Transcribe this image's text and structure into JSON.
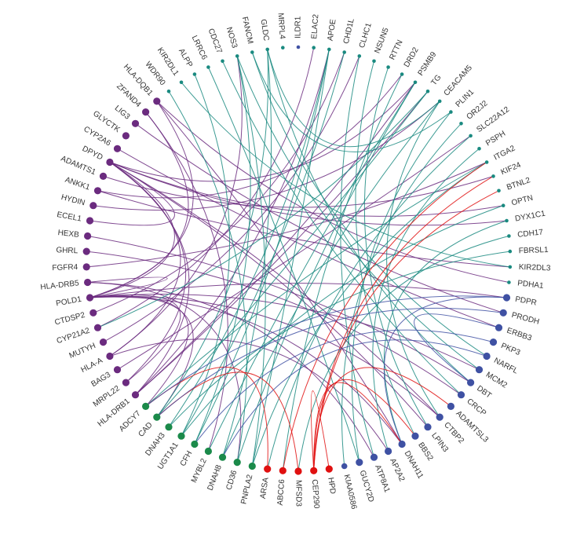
{
  "diagram": {
    "type": "circular-network",
    "group_colors": {
      "teal": "#1a8a80",
      "purple": "#6b2b7f",
      "blue": "#3f51a3",
      "green": "#1b8a4a",
      "red": "#e01010"
    },
    "nodes": [
      {
        "name": "ILDR1",
        "group": "blue",
        "size": 1
      },
      {
        "name": "ELAC2",
        "group": "teal",
        "size": 1
      },
      {
        "name": "APOE",
        "group": "teal",
        "size": 1
      },
      {
        "name": "CHD1L",
        "group": "teal",
        "size": 1
      },
      {
        "name": "CLHC1",
        "group": "teal",
        "size": 1
      },
      {
        "name": "NSUN5",
        "group": "teal",
        "size": 1
      },
      {
        "name": "RTTN",
        "group": "teal",
        "size": 1
      },
      {
        "name": "DRD2",
        "group": "teal",
        "size": 1
      },
      {
        "name": "PSMB9",
        "group": "teal",
        "size": 1
      },
      {
        "name": "TG",
        "group": "teal",
        "size": 1
      },
      {
        "name": "CEACAM5",
        "group": "teal",
        "size": 1
      },
      {
        "name": "PLIN1",
        "group": "teal",
        "size": 1
      },
      {
        "name": "OR2J2",
        "group": "teal",
        "size": 1
      },
      {
        "name": "SLC22A12",
        "group": "teal",
        "size": 1
      },
      {
        "name": "PSPH",
        "group": "teal",
        "size": 1
      },
      {
        "name": "ITGA2",
        "group": "teal",
        "size": 1
      },
      {
        "name": "KIF24",
        "group": "teal",
        "size": 1
      },
      {
        "name": "BTNL2",
        "group": "teal",
        "size": 1
      },
      {
        "name": "OPTN",
        "group": "teal",
        "size": 1
      },
      {
        "name": "DYX1C1",
        "group": "teal",
        "size": 1
      },
      {
        "name": "CDH17",
        "group": "teal",
        "size": 1
      },
      {
        "name": "FBRSL1",
        "group": "teal",
        "size": 1
      },
      {
        "name": "KIR2DL3",
        "group": "teal",
        "size": 1
      },
      {
        "name": "PDHA1",
        "group": "teal",
        "size": 1
      },
      {
        "name": "PDPR",
        "group": "blue",
        "size": 3
      },
      {
        "name": "PRODH",
        "group": "blue",
        "size": 3
      },
      {
        "name": "ERBB3",
        "group": "blue",
        "size": 3
      },
      {
        "name": "PKP3",
        "group": "blue",
        "size": 3
      },
      {
        "name": "NARFL",
        "group": "blue",
        "size": 3
      },
      {
        "name": "MCM2",
        "group": "blue",
        "size": 3
      },
      {
        "name": "DBT",
        "group": "blue",
        "size": 3
      },
      {
        "name": "CRCP",
        "group": "blue",
        "size": 3
      },
      {
        "name": "ADAMTSL3",
        "group": "blue",
        "size": 3
      },
      {
        "name": "CTBP2",
        "group": "blue",
        "size": 3
      },
      {
        "name": "LPIN3",
        "group": "blue",
        "size": 3
      },
      {
        "name": "BBS2",
        "group": "blue",
        "size": 3
      },
      {
        "name": "DNAH11",
        "group": "blue",
        "size": 3
      },
      {
        "name": "AP2A2",
        "group": "blue",
        "size": 3
      },
      {
        "name": "ATP8A1",
        "group": "blue",
        "size": 3
      },
      {
        "name": "GUCY2D",
        "group": "blue",
        "size": 3
      },
      {
        "name": "KIAA0586",
        "group": "blue",
        "size": 2
      },
      {
        "name": "HPD",
        "group": "red",
        "size": 3
      },
      {
        "name": "CEP290",
        "group": "red",
        "size": 3
      },
      {
        "name": "MFSD3",
        "group": "red",
        "size": 3
      },
      {
        "name": "ABCC6",
        "group": "red",
        "size": 3
      },
      {
        "name": "ARSA",
        "group": "red",
        "size": 3
      },
      {
        "name": "PNPLA2",
        "group": "green",
        "size": 3
      },
      {
        "name": "CD36",
        "group": "green",
        "size": 3
      },
      {
        "name": "DNAH8",
        "group": "green",
        "size": 3
      },
      {
        "name": "MYBL2",
        "group": "green",
        "size": 3
      },
      {
        "name": "CFH",
        "group": "green",
        "size": 3
      },
      {
        "name": "UGT1A1",
        "group": "green",
        "size": 3
      },
      {
        "name": "DNAH3",
        "group": "green",
        "size": 3
      },
      {
        "name": "CAD",
        "group": "green",
        "size": 3
      },
      {
        "name": "ADCY7",
        "group": "green",
        "size": 3
      },
      {
        "name": "HLA-DRB1",
        "group": "purple",
        "size": 3
      },
      {
        "name": "MRPL22",
        "group": "purple",
        "size": 3
      },
      {
        "name": "BAG3",
        "group": "purple",
        "size": 3
      },
      {
        "name": "HLA-A",
        "group": "purple",
        "size": 3
      },
      {
        "name": "MUTYH",
        "group": "purple",
        "size": 3
      },
      {
        "name": "CYP21A2",
        "group": "purple",
        "size": 3
      },
      {
        "name": "CTDSP2",
        "group": "purple",
        "size": 3
      },
      {
        "name": "POLD1",
        "group": "purple",
        "size": 3
      },
      {
        "name": "HLA-DRB5",
        "group": "purple",
        "size": 3
      },
      {
        "name": "FGFR4",
        "group": "purple",
        "size": 3
      },
      {
        "name": "GHRL",
        "group": "purple",
        "size": 3
      },
      {
        "name": "HEXB",
        "group": "purple",
        "size": 3
      },
      {
        "name": "ECEL1",
        "group": "purple",
        "size": 3
      },
      {
        "name": "HYDIN",
        "group": "purple",
        "size": 3
      },
      {
        "name": "ANKK1",
        "group": "purple",
        "size": 3
      },
      {
        "name": "ADAMTS1",
        "group": "purple",
        "size": 3
      },
      {
        "name": "DPYD",
        "group": "purple",
        "size": 3
      },
      {
        "name": "CYP2A6",
        "group": "purple",
        "size": 3
      },
      {
        "name": "GLYCTK",
        "group": "purple",
        "size": 3
      },
      {
        "name": "LIG3",
        "group": "purple",
        "size": 3
      },
      {
        "name": "ZFAND4",
        "group": "purple",
        "size": 3
      },
      {
        "name": "HLA-DQB1",
        "group": "purple",
        "size": 3
      },
      {
        "name": "WDR90",
        "group": "teal",
        "size": 1
      },
      {
        "name": "KIR2DL1",
        "group": "teal",
        "size": 1
      },
      {
        "name": "ALPP",
        "group": "teal",
        "size": 1
      },
      {
        "name": "LRRC6",
        "group": "teal",
        "size": 1
      },
      {
        "name": "CDC27",
        "group": "teal",
        "size": 1
      },
      {
        "name": "NOS3",
        "group": "teal",
        "size": 1
      },
      {
        "name": "FANCM",
        "group": "teal",
        "size": 1
      },
      {
        "name": "GLDC",
        "group": "teal",
        "size": 1
      },
      {
        "name": "MRPL4",
        "group": "teal",
        "size": 1
      }
    ],
    "links": [
      [
        "POLD1",
        "DPYD"
      ],
      [
        "POLD1",
        "HLA-DRB5"
      ],
      [
        "POLD1",
        "ZFAND4"
      ],
      [
        "POLD1",
        "HLA-DQB1"
      ],
      [
        "POLD1",
        "CAD"
      ],
      [
        "POLD1",
        "CTBP2"
      ],
      [
        "POLD1",
        "DNAH11"
      ],
      [
        "POLD1",
        "MCM2"
      ],
      [
        "POLD1",
        "PDPR"
      ],
      [
        "POLD1",
        "ADCY7"
      ],
      [
        "POLD1",
        "MRPL22"
      ],
      [
        "DPYD",
        "HLA-A"
      ],
      [
        "DPYD",
        "ECEL1"
      ],
      [
        "DPYD",
        "CTBP2"
      ],
      [
        "DPYD",
        "PSMB9"
      ],
      [
        "DPYD",
        "LPIN3"
      ],
      [
        "DPYD",
        "OPTN"
      ],
      [
        "DPYD",
        "DYX1C1"
      ],
      [
        "DPYD",
        "HLA-DRB1"
      ],
      [
        "DPYD",
        "MRPL22"
      ],
      [
        "HLA-DQB1",
        "DNAH11"
      ],
      [
        "HLA-DQB1",
        "PDHA1"
      ],
      [
        "ZFAND4",
        "MYBL2"
      ],
      [
        "HLA-DRB5",
        "CD36"
      ],
      [
        "HLA-DRB5",
        "ATP8A1"
      ],
      [
        "HLA-A",
        "AP2A2"
      ],
      [
        "HLA-A",
        "NOS3"
      ],
      [
        "HLA-DRB1",
        "TG"
      ],
      [
        "HLA-DRB1",
        "PSMB9"
      ],
      [
        "HLA-DRB1",
        "APOE"
      ],
      [
        "ANKK1",
        "DRD2"
      ],
      [
        "ANKK1",
        "KIR2DL3"
      ],
      [
        "GHRL",
        "CRCP"
      ],
      [
        "HEXB",
        "DBT"
      ],
      [
        "HYDIN",
        "CEACAM5"
      ],
      [
        "CYP2A6",
        "ERBB3"
      ],
      [
        "LIG3",
        "PRODH"
      ],
      [
        "FGFR4",
        "ITGA2"
      ],
      [
        "ADAMTS1",
        "KIF24"
      ],
      [
        "BAG3",
        "SLC22A12"
      ],
      [
        "MUTYH",
        "CLHC1"
      ],
      [
        "CTDSP2",
        "CHD1L"
      ],
      [
        "CYP21A2",
        "ELAC2"
      ],
      [
        "GLDC",
        "DBT"
      ],
      [
        "GLDC",
        "CEACAM5"
      ],
      [
        "GLDC",
        "CAD"
      ],
      [
        "GLDC",
        "DNAH8"
      ],
      [
        "NOS3",
        "MCM2"
      ],
      [
        "NOS3",
        "PNPLA2"
      ],
      [
        "NOS3",
        "CFH"
      ],
      [
        "FANCM",
        "NARFL"
      ],
      [
        "FANCM",
        "PLIN1"
      ],
      [
        "CDC27",
        "CRCP"
      ],
      [
        "LRRC6",
        "GUCY2D"
      ],
      [
        "ALPP",
        "UGT1A1"
      ],
      [
        "KIR2DL1",
        "KIR2DL3"
      ],
      [
        "WDR90",
        "CD36"
      ],
      [
        "APOE",
        "CFH"
      ],
      [
        "APOE",
        "PNPLA2"
      ],
      [
        "APOE",
        "DNAH3"
      ],
      [
        "CHD1L",
        "UGT1A1"
      ],
      [
        "PSMB9",
        "CD36"
      ],
      [
        "PSMB9",
        "MYBL2"
      ],
      [
        "TG",
        "CAD"
      ],
      [
        "TG",
        "CYP21A2"
      ],
      [
        "CEACAM5",
        "DNAH8"
      ],
      [
        "CEACAM5",
        "CTBP2"
      ],
      [
        "ITGA2",
        "ADCY7"
      ],
      [
        "ITGA2",
        "PNPLA2"
      ],
      [
        "DRD2",
        "ABCC6"
      ],
      [
        "RTTN",
        "LPIN3"
      ],
      [
        "NSUN5",
        "BBS2"
      ],
      [
        "CLHC1",
        "ATP8A1"
      ],
      [
        "PLIN1",
        "GUCY2D"
      ],
      [
        "OR2J2",
        "KIAA0586"
      ],
      [
        "DYX1C1",
        "DNAH11"
      ],
      [
        "CDH17",
        "MFSD3"
      ],
      [
        "FBRSL1",
        "DNAH3"
      ],
      [
        "OPTN",
        "UGT1A1"
      ],
      [
        "PSPH",
        "AP2A2"
      ],
      [
        "SLC22A12",
        "ARSA"
      ],
      [
        "CEP290",
        "BTNL2"
      ],
      [
        "CEP290",
        "KIF24"
      ],
      [
        "CEP290",
        "ADAMTSL3"
      ],
      [
        "CEP290",
        "DNAH11"
      ],
      [
        "CEP290",
        "HPD"
      ],
      [
        "CEP290",
        "BBS2"
      ],
      [
        "MFSD3",
        "CAD"
      ],
      [
        "ABCC6",
        "ITGA2"
      ],
      [
        "ARSA",
        "ADCY7"
      ],
      [
        "PDPR",
        "DNAH11"
      ],
      [
        "PDPR",
        "ADCY7"
      ],
      [
        "PRODH",
        "CAD"
      ],
      [
        "DBT",
        "ERBB3"
      ],
      [
        "NARFL",
        "DNAH8"
      ],
      [
        "PKP3",
        "CFH"
      ]
    ]
  }
}
